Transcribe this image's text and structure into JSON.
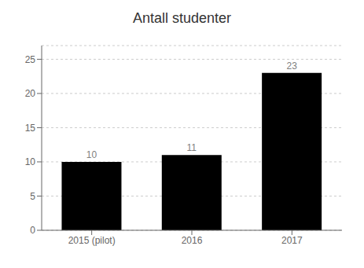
{
  "chart_data": {
    "type": "bar",
    "title": "Antall studenter",
    "categories": [
      "2015 (pilot)",
      "2016",
      "2017"
    ],
    "values": [
      10,
      11,
      23
    ],
    "ylim": [
      0,
      27
    ],
    "yticks": [
      0,
      5,
      10,
      15,
      20,
      25
    ],
    "grid": true,
    "data_labels": true
  }
}
